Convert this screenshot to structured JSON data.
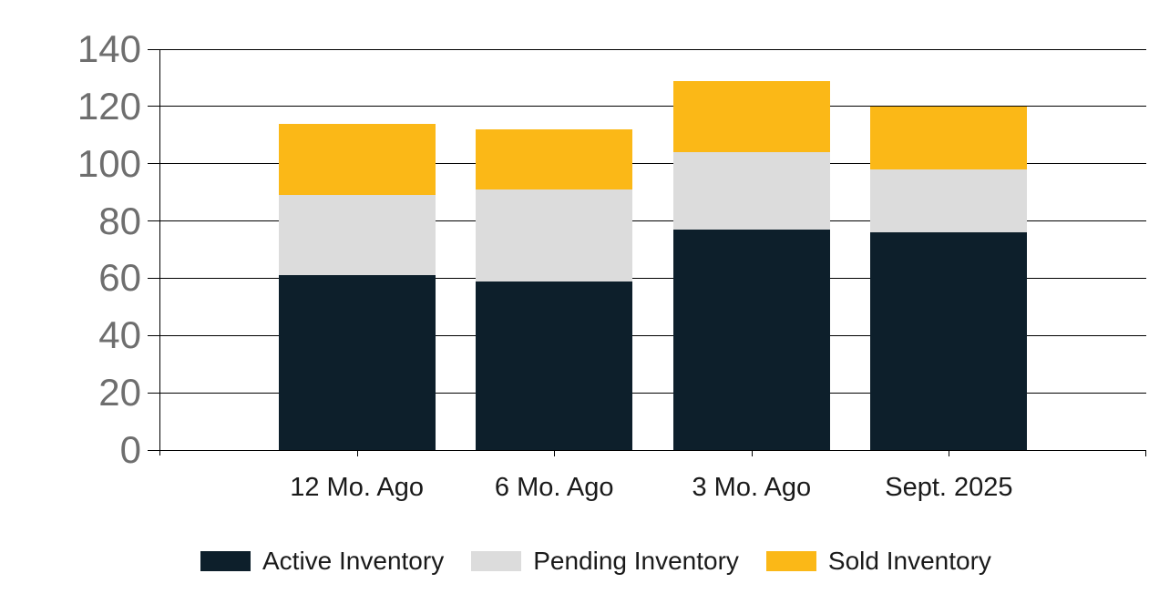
{
  "chart_data": {
    "type": "bar",
    "stacked": true,
    "title": "",
    "categories": [
      "12 Mo. Ago",
      "6 Mo. Ago",
      "3 Mo. Ago",
      "Sept. 2025"
    ],
    "series": [
      {
        "name": "Active Inventory",
        "color": "#0d1f2b",
        "values": [
          61,
          59,
          77,
          76
        ]
      },
      {
        "name": "Pending Inventory",
        "color": "#dcdcdc",
        "values": [
          28,
          32,
          27,
          22
        ]
      },
      {
        "name": "Sold Inventory",
        "color": "#fbb817",
        "values": [
          25,
          21,
          25,
          22
        ]
      }
    ],
    "stack_totals": [
      114,
      112,
      129,
      120
    ],
    "y_axis": {
      "min": 0,
      "max": 140,
      "step": 20,
      "tick_labels": [
        "0",
        "20",
        "40",
        "60",
        "80",
        "100",
        "120",
        "140"
      ]
    },
    "x_axis": {
      "tick_labels": [
        "12 Mo. Ago",
        "6 Mo. Ago",
        "3 Mo. Ago",
        "Sept. 2025"
      ]
    },
    "grid": true,
    "legend_position": "bottom"
  },
  "styles": {
    "background_color": "#ffffff",
    "grid_color": "#000000",
    "y_label_color": "#6e6e6e",
    "x_label_color": "#1a1a1a",
    "legend_text_color": "#1a1a1a"
  }
}
